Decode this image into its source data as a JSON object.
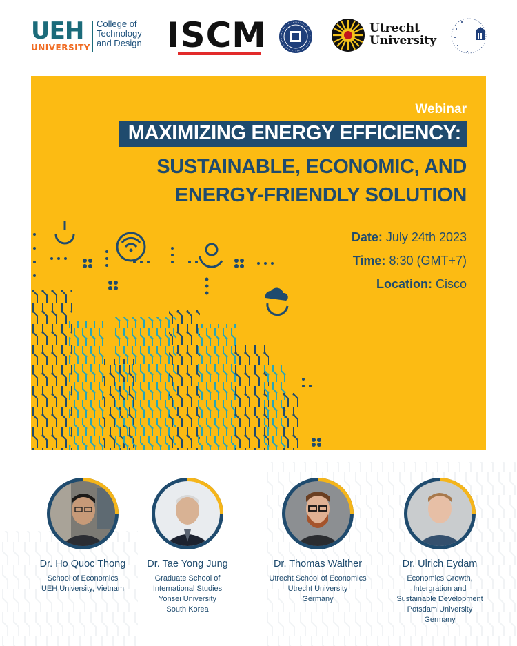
{
  "logos": {
    "ueh_main": "UEH",
    "ueh_sub": "UNIVERSITY",
    "ueh_college_line1": "College of",
    "ueh_college_line2": "Technology",
    "ueh_college_line3": "and Design",
    "iscm": "ISCM",
    "utrecht_line1": "Utrecht",
    "utrecht_line2": "University"
  },
  "banner": {
    "eyebrow": "Webinar",
    "title_line1": "MAXIMIZING ENERGY EFFICIENCY:",
    "title_line2": "SUSTAINABLE, ECONOMIC, AND",
    "title_line3": "ENERGY-FRIENDLY SOLUTION",
    "date_label": "Date:",
    "date_value": "July 24th 2023",
    "time_label": "Time:",
    "time_value": "8:30 (GMT+7)",
    "location_label": "Location:",
    "location_value": "Cisco"
  },
  "speakers": [
    {
      "name": "Dr. Ho Quoc Thong",
      "aff_line1": "School of Economics",
      "aff_line2": "UEH University, Vietnam",
      "aff_line3": "",
      "aff_line4": "",
      "aff_line5": ""
    },
    {
      "name": "Dr. Tae Yong Jung",
      "aff_line1": "Graduate School of",
      "aff_line2": "International Studies",
      "aff_line3": "Yonsei University",
      "aff_line4": "South Korea",
      "aff_line5": ""
    },
    {
      "name": "Dr. Thomas Walther",
      "aff_line1": "Utrecht School of Economics",
      "aff_line2": "Utrecht University",
      "aff_line3": "Germany",
      "aff_line4": "",
      "aff_line5": ""
    },
    {
      "name": "Dr. Ulrich Eydam",
      "aff_line1": "Economics Growth,",
      "aff_line2": "Intergration and",
      "aff_line3": "Sustainable Development",
      "aff_line4": "Potsdam University",
      "aff_line5": "Germany"
    }
  ],
  "colors": {
    "banner_yellow": "#fcbb13",
    "navy": "#1f4b6e",
    "teal": "#2aa6b6",
    "ring_yellow": "#f5b51a"
  }
}
